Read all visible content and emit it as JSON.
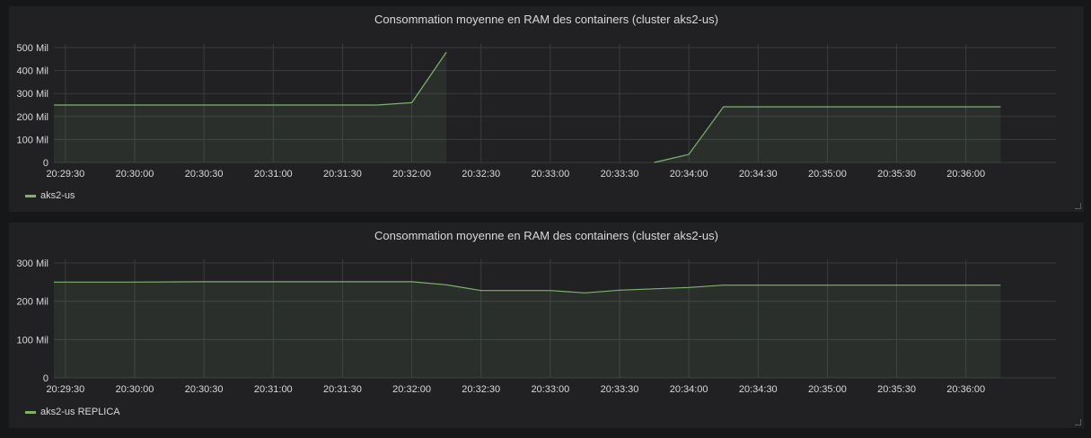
{
  "colors": {
    "background": "#161719",
    "panel": "#212124",
    "grid": "#3b3b3e",
    "text": "#d8d9da",
    "series": "#7eb26d",
    "series_fill": "#7eb26d"
  },
  "panels": [
    {
      "title": "Consommation moyenne en RAM des containers (cluster aks2-us)",
      "legend_label": "aks2-us",
      "legend_icon": "line-swatch"
    },
    {
      "title": "Consommation moyenne en RAM des containers (cluster aks2-us)",
      "legend_label": "aks2-us REPLICA",
      "legend_icon": "line-swatch"
    }
  ],
  "chart_data": [
    {
      "type": "area",
      "title": "Consommation moyenne en RAM des containers (cluster aks2-us)",
      "x_ticks": [
        "20:29:30",
        "20:30:00",
        "20:30:30",
        "20:31:00",
        "20:31:30",
        "20:32:00",
        "20:32:30",
        "20:33:00",
        "20:33:30",
        "20:34:00",
        "20:34:30",
        "20:35:00",
        "20:35:30",
        "20:36:00"
      ],
      "y_ticks": [
        0,
        100,
        200,
        300,
        400,
        500
      ],
      "y_tick_labels": [
        "0",
        "100 Mil",
        "200 Mil",
        "300 Mil",
        "400 Mil",
        "500 Mil"
      ],
      "xlim": [
        "20:29:25",
        "20:36:39"
      ],
      "ylim": [
        0,
        500
      ],
      "grid": true,
      "legend_position": "bottom-left",
      "series": [
        {
          "name": "aks2-us",
          "segments": [
            {
              "x": [
                "20:29:25",
                "20:30:00",
                "20:30:30",
                "20:31:00",
                "20:31:30",
                "20:31:45",
                "20:32:00",
                "20:32:15"
              ],
              "y": [
                250,
                250,
                250,
                250,
                250,
                250,
                260,
                480
              ]
            },
            {
              "x": [
                "20:33:45",
                "20:34:00",
                "20:34:15",
                "20:34:30",
                "20:35:00",
                "20:35:30",
                "20:36:00",
                "20:36:15"
              ],
              "y": [
                0,
                35,
                242,
                242,
                242,
                242,
                242,
                242
              ]
            }
          ]
        }
      ]
    },
    {
      "type": "area",
      "title": "Consommation moyenne en RAM des containers (cluster aks2-us)",
      "x_ticks": [
        "20:29:30",
        "20:30:00",
        "20:30:30",
        "20:31:00",
        "20:31:30",
        "20:32:00",
        "20:32:30",
        "20:33:00",
        "20:33:30",
        "20:34:00",
        "20:34:30",
        "20:35:00",
        "20:35:30",
        "20:36:00"
      ],
      "y_ticks": [
        0,
        100,
        200,
        300
      ],
      "y_tick_labels": [
        "0",
        "100 Mil",
        "200 Mil",
        "300 Mil"
      ],
      "xlim": [
        "20:29:25",
        "20:36:39"
      ],
      "ylim": [
        0,
        300
      ],
      "grid": true,
      "legend_position": "bottom-left",
      "series": [
        {
          "name": "aks2-us REPLICA",
          "segments": [
            {
              "x": [
                "20:29:25",
                "20:30:00",
                "20:30:30",
                "20:31:00",
                "20:31:30",
                "20:32:00",
                "20:32:15",
                "20:32:30",
                "20:33:00",
                "20:33:15",
                "20:33:30",
                "20:34:00",
                "20:34:15",
                "20:34:30",
                "20:35:00",
                "20:35:30",
                "20:36:00",
                "20:36:15"
              ],
              "y": [
                250,
                250,
                251,
                251,
                251,
                251,
                243,
                228,
                228,
                222,
                229,
                236,
                242,
                242,
                242,
                242,
                242,
                242
              ]
            }
          ]
        }
      ]
    }
  ]
}
